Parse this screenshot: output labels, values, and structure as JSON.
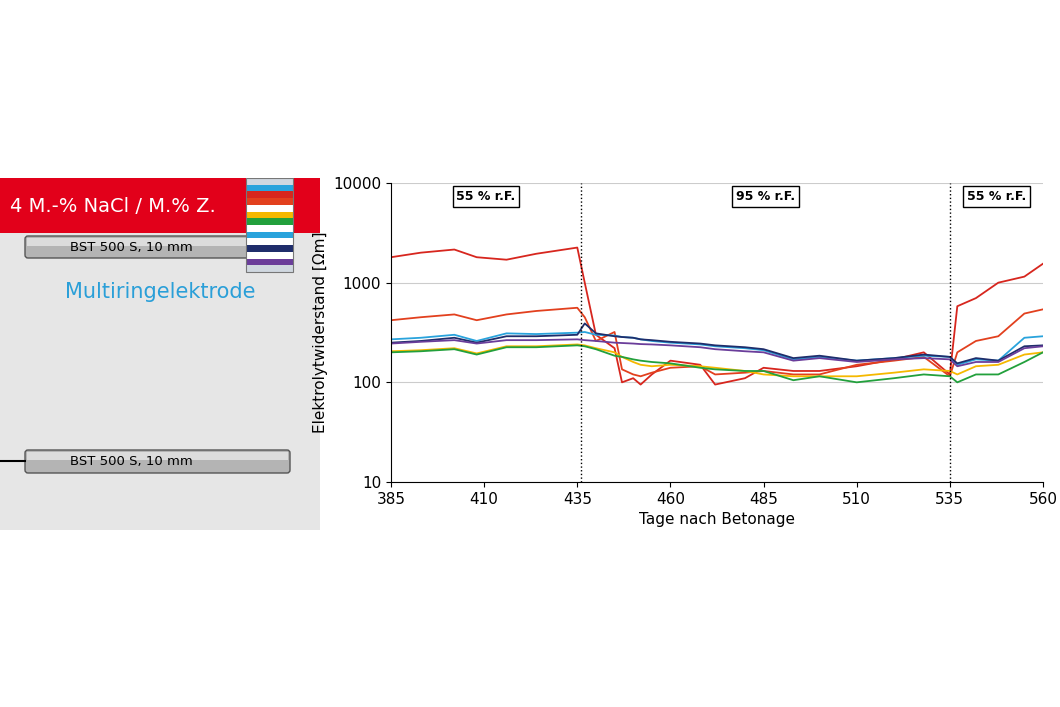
{
  "chart_data": {
    "type": "line",
    "xlabel": "Tage nach Betonage",
    "ylabel": "Elektrolytwiderstand [Ωm]",
    "x": [
      385,
      393,
      402,
      408,
      416,
      424,
      435,
      437,
      440,
      445,
      447,
      450,
      452,
      455,
      460,
      468,
      472,
      480,
      485,
      493,
      500,
      510,
      520,
      528,
      535,
      537,
      542,
      548,
      555,
      560
    ],
    "series": [
      {
        "color": "#d7261e",
        "values": [
          1800,
          2000,
          2150,
          1800,
          1700,
          1950,
          2250,
          1000,
          300,
          220,
          100,
          110,
          95,
          120,
          165,
          150,
          95,
          110,
          140,
          130,
          130,
          145,
          170,
          200,
          120,
          580,
          700,
          1000,
          1150,
          1550
        ]
      },
      {
        "color": "#e2401e",
        "values": [
          420,
          450,
          480,
          420,
          480,
          520,
          560,
          450,
          260,
          320,
          135,
          120,
          115,
          125,
          140,
          145,
          120,
          125,
          130,
          120,
          120,
          150,
          165,
          180,
          115,
          200,
          260,
          290,
          490,
          540
        ]
      },
      {
        "color": "#29a3dc",
        "values": [
          270,
          280,
          300,
          260,
          310,
          305,
          315,
          320,
          300,
          295,
          285,
          280,
          270,
          260,
          250,
          240,
          230,
          220,
          210,
          170,
          180,
          165,
          175,
          185,
          180,
          150,
          170,
          165,
          280,
          290
        ]
      },
      {
        "color": "#1f2d6b",
        "values": [
          250,
          260,
          280,
          250,
          290,
          290,
          300,
          390,
          310,
          290,
          285,
          280,
          270,
          265,
          255,
          245,
          235,
          225,
          215,
          175,
          185,
          165,
          175,
          190,
          180,
          155,
          175,
          165,
          230,
          235
        ]
      },
      {
        "color": "#6a3d9a",
        "values": [
          245,
          255,
          265,
          245,
          265,
          265,
          270,
          265,
          260,
          250,
          248,
          245,
          242,
          240,
          235,
          225,
          215,
          205,
          200,
          165,
          175,
          160,
          170,
          175,
          170,
          145,
          160,
          160,
          220,
          230
        ]
      },
      {
        "color": "#f5b800",
        "values": [
          205,
          210,
          220,
          195,
          230,
          230,
          240,
          235,
          220,
          200,
          180,
          160,
          150,
          145,
          150,
          145,
          140,
          130,
          120,
          115,
          115,
          115,
          125,
          135,
          130,
          120,
          145,
          150,
          190,
          200
        ]
      },
      {
        "color": "#22a03c",
        "values": [
          200,
          205,
          215,
          190,
          225,
          225,
          235,
          230,
          215,
          185,
          180,
          170,
          165,
          160,
          155,
          140,
          135,
          130,
          130,
          105,
          115,
          100,
          110,
          120,
          115,
          100,
          120,
          120,
          160,
          200
        ]
      }
    ],
    "xlim": [
      385,
      560
    ],
    "xticks": [
      385,
      410,
      435,
      460,
      485,
      510,
      535,
      560
    ],
    "ylim": [
      10,
      10000
    ],
    "yticks": [
      10,
      100,
      1000,
      10000
    ],
    "log": "y",
    "grid": true,
    "annotations": [
      "55 % r.F.",
      "95 % r.F.",
      "55 % r.F."
    ],
    "phase_boundaries": [
      436,
      535
    ]
  },
  "diagram": {
    "chloride_label": "4 M.-% NaCl / M.% Z.",
    "rebars": [
      "BST 500 S, 10 mm",
      "BST 500 S, 10 mm"
    ],
    "electrode_label": "Multiringelektrode"
  }
}
